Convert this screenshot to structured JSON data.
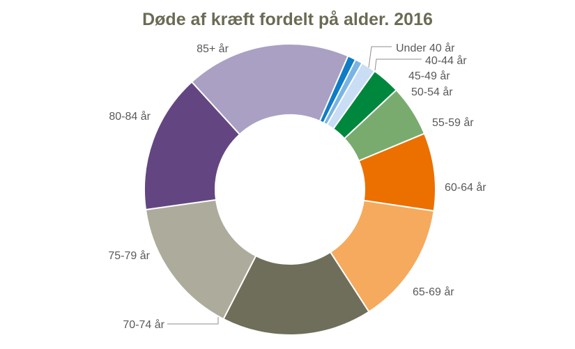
{
  "chart_data": {
    "type": "pie",
    "variant": "donut",
    "title": "Døde af kræft fordelt på alder. 2016",
    "categories": [
      "Under 40 år",
      "40-44 år",
      "45-49 år",
      "50-54 år",
      "55-59 år",
      "60-64 år",
      "65-69 år",
      "70-74 år",
      "75-79 år",
      "80-84 år",
      "85+ år"
    ],
    "values": [
      0.9,
      0.8,
      1.6,
      3.1,
      5.6,
      8.5,
      13.3,
      16.4,
      15.0,
      15.2,
      18.0
    ],
    "colors": [
      "#0f7cc6",
      "#7ab4e4",
      "#c9def4",
      "#00873e",
      "#79ab6f",
      "#eb7000",
      "#f5aa5d",
      "#6e6e5a",
      "#adac9c",
      "#634681",
      "#aaa0c3"
    ],
    "legend": "none (labels beside slices)"
  }
}
